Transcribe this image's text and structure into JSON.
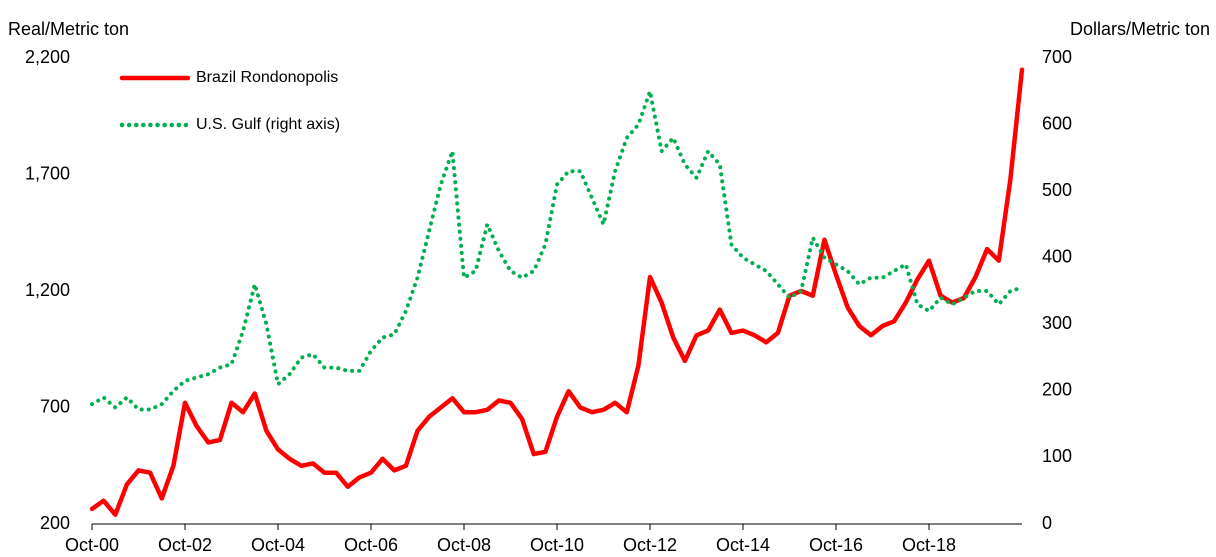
{
  "chart_data": {
    "type": "line",
    "ylabel": "Real/Metric ton",
    "y2label": "Dollars/Metric ton",
    "categories": [
      "Oct-00",
      null,
      null,
      null,
      null,
      null,
      null,
      null,
      "Oct-02",
      null,
      null,
      null,
      null,
      null,
      null,
      null,
      "Oct-04",
      null,
      null,
      null,
      null,
      null,
      null,
      null,
      "Oct-06",
      null,
      null,
      null,
      null,
      null,
      null,
      null,
      "Oct-08",
      null,
      null,
      null,
      null,
      null,
      null,
      null,
      "Oct-10",
      null,
      null,
      null,
      null,
      null,
      null,
      null,
      "Oct-12",
      null,
      null,
      null,
      null,
      null,
      null,
      null,
      "Oct-14",
      null,
      null,
      null,
      null,
      null,
      null,
      null,
      "Oct-16",
      null,
      null,
      null,
      null,
      null,
      null,
      null,
      "Oct-18",
      null,
      null,
      null,
      null,
      null,
      null,
      null,
      null
    ],
    "series": [
      {
        "name": "Brazil Rondonopolis",
        "color": "#ff0000",
        "style": "solid",
        "values": [
          265,
          300,
          240,
          370,
          430,
          420,
          310,
          450,
          720,
          620,
          550,
          560,
          720,
          680,
          760,
          600,
          520,
          480,
          450,
          460,
          420,
          420,
          360,
          400,
          420,
          480,
          430,
          450,
          600,
          660,
          700,
          740,
          680,
          680,
          690,
          730,
          720,
          650,
          500,
          510,
          660,
          770,
          700,
          680,
          690,
          720,
          680,
          880,
          1260,
          1150,
          1000,
          900,
          1010,
          1030,
          1120,
          1020,
          1030,
          1010,
          980,
          1020,
          1180,
          1200,
          1180,
          1420,
          1270,
          1130,
          1050,
          1010,
          1050,
          1070,
          1150,
          1250,
          1330,
          1180,
          1150,
          1170,
          1260,
          1380,
          1330,
          1680,
          2150
        ]
      },
      {
        "name": "U.S. Gulf (right axis)",
        "color": "#00b050",
        "style": "dotted",
        "axis": "y2",
        "values": [
          180,
          190,
          175,
          190,
          172,
          172,
          180,
          200,
          215,
          220,
          225,
          235,
          240,
          290,
          360,
          300,
          210,
          225,
          250,
          255,
          235,
          235,
          230,
          230,
          260,
          280,
          285,
          320,
          370,
          440,
          510,
          560,
          370,
          380,
          450,
          410,
          380,
          370,
          380,
          420,
          510,
          530,
          530,
          490,
          450,
          530,
          580,
          600,
          650,
          560,
          580,
          540,
          520,
          560,
          540,
          420,
          400,
          390,
          380,
          360,
          340,
          350,
          430,
          400,
          390,
          380,
          360,
          370,
          370,
          380,
          390,
          330,
          320,
          340,
          330,
          340,
          350,
          350,
          330,
          350,
          355
        ]
      }
    ],
    "ylim": [
      200,
      2200
    ],
    "yticks": [
      200,
      700,
      {
        "value": 1200,
        "label": "1,200"
      },
      {
        "value": 1700,
        "label": "1,700"
      },
      {
        "value": 2200,
        "label": "2,200"
      }
    ],
    "y2lim": [
      0,
      700
    ],
    "y2ticks": [
      0,
      100,
      200,
      300,
      400,
      500,
      600,
      700
    ],
    "legend": "upper left",
    "grid": false
  }
}
